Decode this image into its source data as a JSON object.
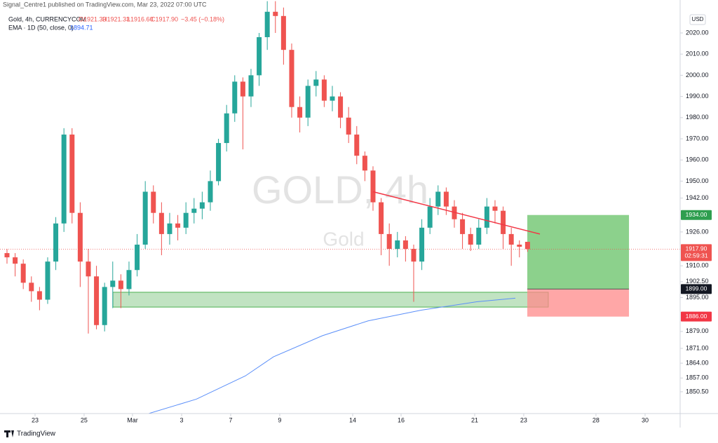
{
  "header": {
    "published": "Signal_Centre1 published on TradingView.com, Mar 23, 2022 07:00 UTC",
    "symbol": "Gold, 4h, CURRENCYCOM",
    "ohlc": [
      "O1921.33",
      "H1921.33",
      "L1916.60",
      "C1917.90"
    ],
    "change": "−3.45 (−0.18%)",
    "ema_label": "EMA · 1D (50, close, 0)",
    "ema_value": "1894.71"
  },
  "chart_data": {
    "type": "candlestick",
    "watermark": "GOLD, 4h",
    "watermark_sub": "Gold",
    "currency": "USD",
    "up_color": "#26a69a",
    "down_color": "#ef5350",
    "ohlc": [
      [
        1916,
        1918,
        1911,
        1914
      ],
      [
        1914,
        1916,
        1905,
        1911
      ],
      [
        1911,
        1913,
        1899,
        1902
      ],
      [
        1902,
        1905,
        1893,
        1898
      ],
      [
        1898,
        1900,
        1889,
        1894
      ],
      [
        1894,
        1914,
        1892,
        1912
      ],
      [
        1912,
        1933,
        1908,
        1930
      ],
      [
        1930,
        1975,
        1926,
        1972
      ],
      [
        1972,
        1975,
        1930,
        1935
      ],
      [
        1935,
        1940,
        1900,
        1912
      ],
      [
        1912,
        1918,
        1878,
        1905
      ],
      [
        1905,
        1910,
        1880,
        1882
      ],
      [
        1882,
        1902,
        1879,
        1900
      ],
      [
        1900,
        1912,
        1890,
        1903
      ],
      [
        1903,
        1906,
        1890,
        1899
      ],
      [
        1899,
        1912,
        1896,
        1908
      ],
      [
        1908,
        1925,
        1905,
        1920
      ],
      [
        1920,
        1950,
        1918,
        1945
      ],
      [
        1945,
        1948,
        1930,
        1935
      ],
      [
        1935,
        1940,
        1915,
        1925
      ],
      [
        1925,
        1935,
        1920,
        1930
      ],
      [
        1930,
        1934,
        1922,
        1928
      ],
      [
        1928,
        1940,
        1925,
        1935
      ],
      [
        1935,
        1942,
        1930,
        1937
      ],
      [
        1937,
        1945,
        1932,
        1940
      ],
      [
        1940,
        1955,
        1936,
        1950
      ],
      [
        1950,
        1970,
        1948,
        1968
      ],
      [
        1968,
        1986,
        1964,
        1982
      ],
      [
        1982,
        2000,
        1978,
        1997
      ],
      [
        1997,
        1999,
        1965,
        1990
      ],
      [
        1990,
        2003,
        1985,
        2000
      ],
      [
        2000,
        2020,
        1995,
        2018
      ],
      [
        2018,
        2035,
        2012,
        2030
      ],
      [
        2030,
        2035,
        2020,
        2028
      ],
      [
        2028,
        2032,
        2005,
        2012
      ],
      [
        2012,
        2015,
        1980,
        1985
      ],
      [
        1985,
        1990,
        1973,
        1980
      ],
      [
        1980,
        1998,
        1976,
        1995
      ],
      [
        1995,
        2002,
        1990,
        1998
      ],
      [
        1998,
        2000,
        1985,
        1988
      ],
      [
        1988,
        1995,
        1983,
        1990
      ],
      [
        1990,
        1992,
        1975,
        1980
      ],
      [
        1980,
        1985,
        1968,
        1972
      ],
      [
        1972,
        1976,
        1958,
        1962
      ],
      [
        1962,
        1964,
        1950,
        1955
      ],
      [
        1955,
        1957,
        1936,
        1940
      ],
      [
        1940,
        1942,
        1915,
        1925
      ],
      [
        1925,
        1930,
        1910,
        1918
      ],
      [
        1918,
        1926,
        1914,
        1922
      ],
      [
        1922,
        1924,
        1912,
        1918
      ],
      [
        1918,
        1920,
        1893,
        1912
      ],
      [
        1912,
        1932,
        1908,
        1928
      ],
      [
        1928,
        1942,
        1925,
        1938
      ],
      [
        1938,
        1948,
        1934,
        1945
      ],
      [
        1945,
        1947,
        1934,
        1938
      ],
      [
        1938,
        1941,
        1928,
        1932
      ],
      [
        1932,
        1935,
        1918,
        1925
      ],
      [
        1925,
        1928,
        1917,
        1920
      ],
      [
        1920,
        1932,
        1918,
        1928
      ],
      [
        1928,
        1942,
        1925,
        1938
      ],
      [
        1938,
        1941,
        1930,
        1936
      ],
      [
        1936,
        1938,
        1918,
        1925
      ],
      [
        1925,
        1928,
        1910,
        1920
      ],
      [
        1920,
        1922,
        1914,
        1919
      ],
      [
        1921.33,
        1921.33,
        1916.6,
        1917.9
      ]
    ],
    "xlim": [
      -0.86,
      82.76
    ],
    "xticks": [
      {
        "value": 3.45,
        "label": "23"
      },
      {
        "value": 9.48,
        "label": "25"
      },
      {
        "value": 15.43,
        "label": "Mar"
      },
      {
        "value": 21.47,
        "label": "3"
      },
      {
        "value": 27.5,
        "label": "7"
      },
      {
        "value": 33.53,
        "label": "9"
      },
      {
        "value": 42.5,
        "label": "14"
      },
      {
        "value": 48.45,
        "label": "16"
      },
      {
        "value": 57.5,
        "label": "21"
      },
      {
        "value": 63.53,
        "label": "23"
      },
      {
        "value": 72.41,
        "label": "28"
      },
      {
        "value": 78.45,
        "label": "30"
      }
    ],
    "ylim": [
      1840.2,
      2029.6
    ],
    "yticks": [
      {
        "value": 2020,
        "label": "2020.00"
      },
      {
        "value": 2010,
        "label": "2010.00"
      },
      {
        "value": 2000,
        "label": "2000.00"
      },
      {
        "value": 1990,
        "label": "1990.00"
      },
      {
        "value": 1980,
        "label": "1980.00"
      },
      {
        "value": 1970,
        "label": "1970.00"
      },
      {
        "value": 1960,
        "label": "1960.00"
      },
      {
        "value": 1950,
        "label": "1950.00"
      },
      {
        "value": 1942,
        "label": "1942.00"
      },
      {
        "value": 1926,
        "label": "1926.00"
      },
      {
        "value": 1910,
        "label": "1910.00"
      },
      {
        "value": 1902.5,
        "label": "1902.50"
      },
      {
        "value": 1895,
        "label": "1895.00"
      },
      {
        "value": 1879,
        "label": "1879.00"
      },
      {
        "value": 1871,
        "label": "1871.00"
      },
      {
        "value": 1864,
        "label": "1864.00"
      },
      {
        "value": 1857,
        "label": "1857.00"
      },
      {
        "value": 1850.5,
        "label": "1850.50"
      }
    ],
    "ema": {
      "color": "#5b8ff9",
      "x": [
        17.24,
        23.28,
        29.31,
        32.76,
        38.79,
        44.4,
        50.86,
        57.76,
        62.5
      ],
      "values": [
        1840,
        1847,
        1858,
        1867,
        1877,
        1884,
        1889,
        1893,
        1894.7
      ]
    },
    "trendline": {
      "color": "#f23645",
      "x": [
        45,
        65.52
      ],
      "values": [
        1945,
        1925
      ]
    },
    "zone": {
      "color": "#4caf50",
      "x": [
        13.02,
        66.55
      ],
      "values": [
        1890.5,
        1897.5
      ]
    },
    "position": {
      "x": [
        63.97,
        76.47
      ],
      "entry": 1899,
      "target": 1934,
      "stop": 1886,
      "target_color": "#66c266",
      "stop_color": "#ff8a8a"
    },
    "price_labels": [
      {
        "value": 1934,
        "label": "1934.00",
        "color": "#2e9e4f"
      },
      {
        "value": 1917.9,
        "label": "1917.90",
        "color": "#ef5350"
      },
      {
        "value": 1899,
        "label": "1899.00",
        "color": "#131722"
      },
      {
        "value": 1886,
        "label": "1886.00",
        "color": "#f23645"
      }
    ],
    "countdown": "02:59:31"
  },
  "footer": {
    "brand": "TradingView"
  }
}
